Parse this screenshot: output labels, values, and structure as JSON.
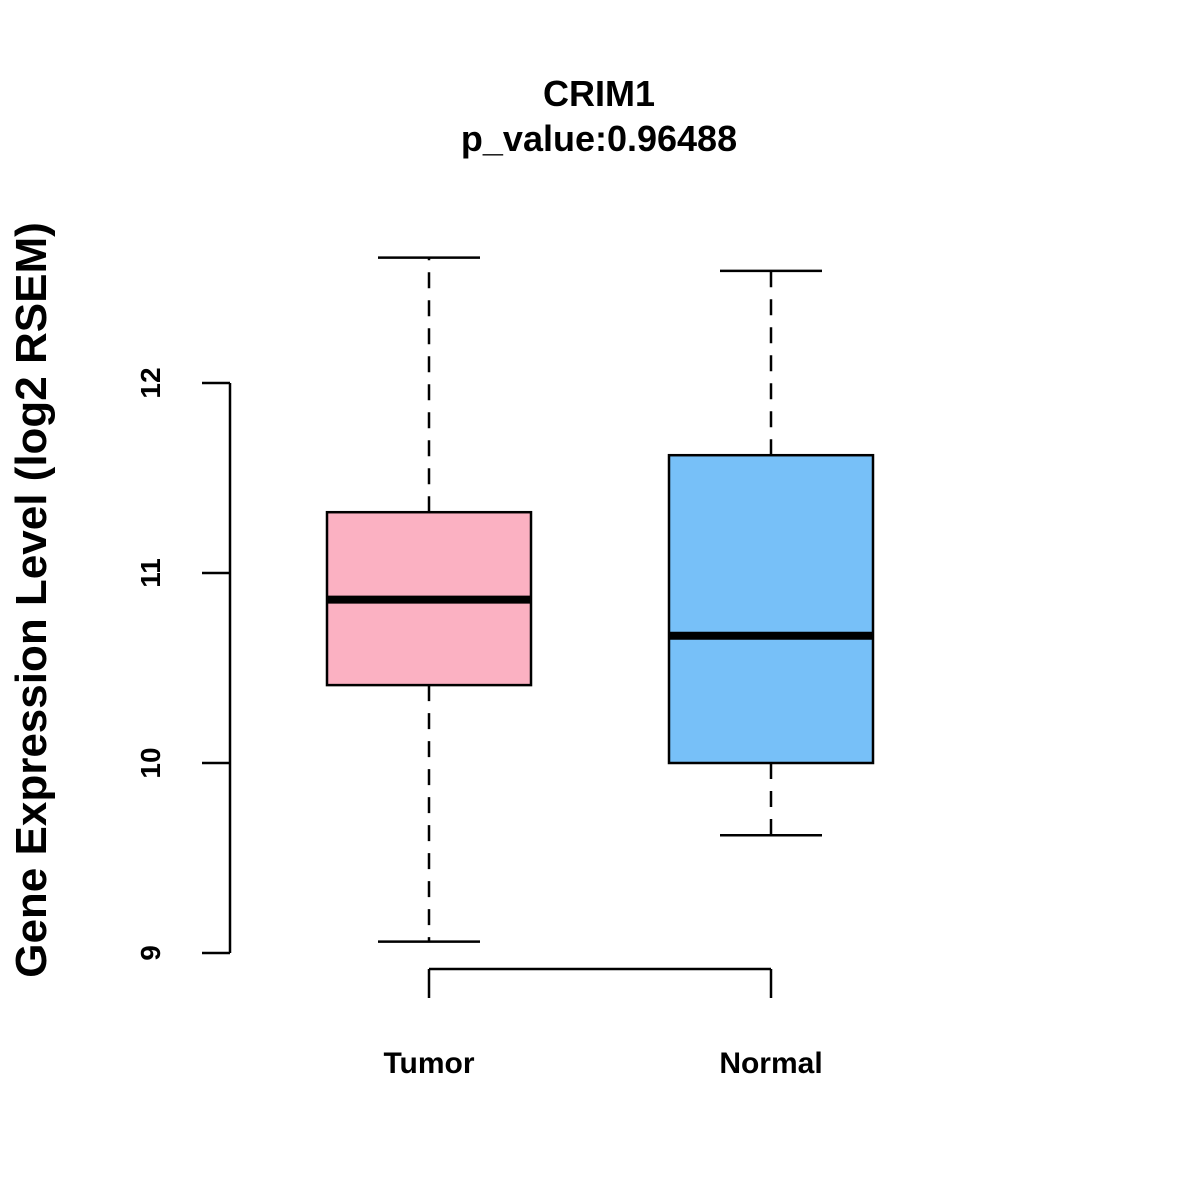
{
  "chart_data": {
    "type": "box",
    "title": "CRIM1",
    "subtitle": "p_value:0.96488",
    "ylabel": "Gene Expression Level (log2 RSEM)",
    "xlabel": "",
    "ylim": [
      9,
      12
    ],
    "yticks": [
      "9",
      "10",
      "11",
      "12"
    ],
    "grid": false,
    "legend": "none",
    "categories": [
      "Tumor",
      "Normal"
    ],
    "series": [
      {
        "category": "Tumor",
        "whisker_low": 9.06,
        "q1": 10.41,
        "median": 10.86,
        "q3": 11.32,
        "whisker_high": 12.66,
        "color": "#FBB1C2"
      },
      {
        "category": "Normal",
        "whisker_low": 9.62,
        "q1": 10.0,
        "median": 10.67,
        "q3": 11.62,
        "whisker_high": 12.59,
        "color": "#77C0F8"
      }
    ]
  }
}
